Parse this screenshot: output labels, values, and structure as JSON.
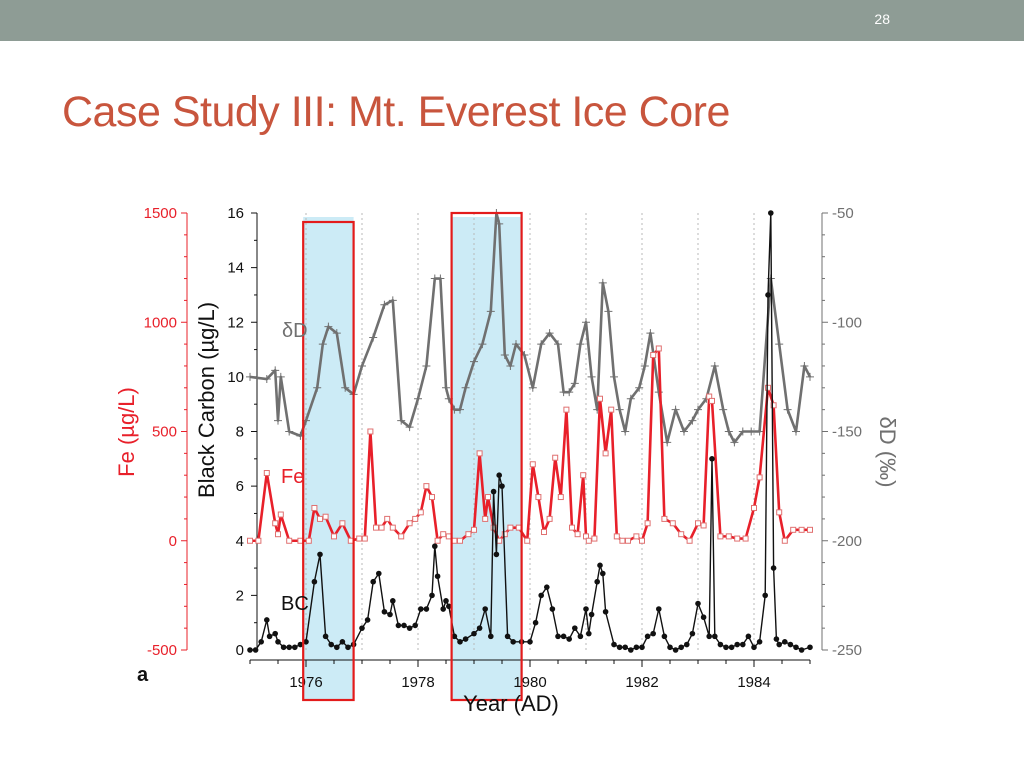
{
  "slide": {
    "number": "28",
    "title": "Case Study III: Mt. Everest Ice Core"
  },
  "colors": {
    "topbar": "#8e9c95",
    "title": "#c8553d",
    "fe": "#e8202a",
    "dd": "#707070",
    "bc": "#111111",
    "highlight_fill": "#bfe6f4",
    "highlight_border": "#e31b1b"
  },
  "chart_data": {
    "type": "line",
    "panel_label": "a",
    "xlabel": "Year (AD)",
    "xlim": [
      1975.0,
      1985.0
    ],
    "xticks": [
      1976,
      1978,
      1980,
      1982,
      1984
    ],
    "grid": "dotted vertical lines at year boundaries",
    "axes": {
      "fe": {
        "label": "Fe (µg/L)",
        "ticks": [
          -500,
          0,
          500,
          1000,
          1500
        ],
        "lim": [
          -500,
          1500
        ]
      },
      "bc": {
        "label": "Black Carbon (µg/L)",
        "ticks": [
          0,
          2,
          4,
          6,
          8,
          10,
          12,
          14,
          16
        ],
        "lim": [
          0,
          16
        ]
      },
      "dd": {
        "label": "δD (‰)",
        "ticks": [
          -50,
          -100,
          -150,
          -200,
          -250
        ],
        "lim": [
          -250,
          -50
        ]
      }
    },
    "highlights": [
      {
        "x_start": 1975.95,
        "x_end": 1976.85
      },
      {
        "x_start": 1978.6,
        "x_end": 1979.85
      }
    ],
    "series": [
      {
        "name": "δD",
        "axis": "dd",
        "marker": "plus",
        "x": [
          1975.0,
          1975.3,
          1975.45,
          1975.5,
          1975.55,
          1975.7,
          1975.9,
          1976.0,
          1976.2,
          1976.3,
          1976.4,
          1976.55,
          1976.7,
          1976.85,
          1977.0,
          1977.2,
          1977.4,
          1977.55,
          1977.7,
          1977.85,
          1978.0,
          1978.15,
          1978.3,
          1978.4,
          1978.5,
          1978.55,
          1978.65,
          1978.75,
          1978.85,
          1979.0,
          1979.15,
          1979.3,
          1979.4,
          1979.45,
          1979.55,
          1979.65,
          1979.75,
          1979.9,
          1980.05,
          1980.2,
          1980.35,
          1980.5,
          1980.6,
          1980.7,
          1980.8,
          1980.9,
          1981.0,
          1981.1,
          1981.2,
          1981.3,
          1981.4,
          1981.5,
          1981.6,
          1981.7,
          1981.8,
          1981.95,
          1982.05,
          1982.15,
          1982.3,
          1982.45,
          1982.6,
          1982.75,
          1982.9,
          1983.0,
          1983.15,
          1983.3,
          1983.45,
          1983.55,
          1983.65,
          1983.8,
          1983.95,
          1984.1,
          1984.3,
          1984.45,
          1984.6,
          1984.75,
          1984.9,
          1985.0
        ],
        "y": [
          -125,
          -126,
          -122,
          -145,
          -125,
          -150,
          -152,
          -145,
          -130,
          -110,
          -102,
          -105,
          -130,
          -133,
          -120,
          -107,
          -92,
          -90,
          -145,
          -148,
          -135,
          -120,
          -80,
          -80,
          -130,
          -135,
          -140,
          -140,
          -130,
          -118,
          -110,
          -95,
          -50,
          -55,
          -115,
          -120,
          -110,
          -115,
          -130,
          -110,
          -105,
          -110,
          -132,
          -132,
          -128,
          -110,
          -100,
          -125,
          -140,
          -82,
          -95,
          -125,
          -140,
          -150,
          -135,
          -130,
          -120,
          -105,
          -132,
          -155,
          -140,
          -150,
          -145,
          -140,
          -135,
          -120,
          -140,
          -150,
          -155,
          -150,
          -150,
          -150,
          -80,
          -110,
          -140,
          -150,
          -120,
          -125
        ]
      },
      {
        "name": "Fe",
        "axis": "fe",
        "marker": "square",
        "x": [
          1975.0,
          1975.15,
          1975.3,
          1975.45,
          1975.5,
          1975.55,
          1975.7,
          1975.9,
          1976.05,
          1976.15,
          1976.25,
          1976.35,
          1976.5,
          1976.65,
          1976.8,
          1976.95,
          1977.05,
          1977.15,
          1977.25,
          1977.35,
          1977.45,
          1977.55,
          1977.7,
          1977.85,
          1977.95,
          1978.05,
          1978.15,
          1978.25,
          1978.35,
          1978.45,
          1978.55,
          1978.65,
          1978.75,
          1978.9,
          1979.0,
          1979.1,
          1979.2,
          1979.25,
          1979.35,
          1979.45,
          1979.55,
          1979.65,
          1979.8,
          1979.95,
          1980.05,
          1980.15,
          1980.25,
          1980.35,
          1980.45,
          1980.55,
          1980.65,
          1980.75,
          1980.85,
          1980.95,
          1981.0,
          1981.05,
          1981.15,
          1981.25,
          1981.35,
          1981.45,
          1981.55,
          1981.65,
          1981.75,
          1981.9,
          1982.0,
          1982.1,
          1982.2,
          1982.3,
          1982.4,
          1982.55,
          1982.7,
          1982.85,
          1983.0,
          1983.1,
          1983.2,
          1983.25,
          1983.4,
          1983.55,
          1983.7,
          1983.85,
          1984.0,
          1984.1,
          1984.25,
          1984.35,
          1984.45,
          1984.55,
          1984.7,
          1984.85,
          1985.0
        ],
        "y": [
          0,
          0,
          310,
          80,
          30,
          120,
          0,
          0,
          0,
          150,
          100,
          110,
          20,
          80,
          0,
          10,
          10,
          500,
          60,
          60,
          100,
          60,
          20,
          80,
          100,
          130,
          250,
          200,
          0,
          30,
          20,
          0,
          0,
          30,
          50,
          400,
          100,
          200,
          60,
          0,
          30,
          60,
          60,
          0,
          350,
          200,
          40,
          100,
          380,
          200,
          600,
          60,
          30,
          300,
          20,
          0,
          10,
          650,
          400,
          600,
          20,
          0,
          0,
          20,
          0,
          80,
          850,
          880,
          100,
          80,
          30,
          0,
          80,
          70,
          660,
          640,
          20,
          20,
          10,
          10,
          150,
          290,
          700,
          620,
          130,
          0,
          50,
          50,
          50
        ]
      },
      {
        "name": "BC",
        "axis": "bc",
        "marker": "dot",
        "x": [
          1975.0,
          1975.1,
          1975.2,
          1975.3,
          1975.35,
          1975.45,
          1975.5,
          1975.6,
          1975.7,
          1975.8,
          1975.9,
          1976.0,
          1976.15,
          1976.25,
          1976.35,
          1976.45,
          1976.55,
          1976.65,
          1976.75,
          1976.85,
          1977.0,
          1977.1,
          1977.2,
          1977.3,
          1977.4,
          1977.5,
          1977.55,
          1977.65,
          1977.75,
          1977.85,
          1977.95,
          1978.05,
          1978.15,
          1978.25,
          1978.3,
          1978.35,
          1978.45,
          1978.5,
          1978.55,
          1978.65,
          1978.75,
          1978.85,
          1979.0,
          1979.1,
          1979.2,
          1979.3,
          1979.35,
          1979.4,
          1979.45,
          1979.5,
          1979.6,
          1979.7,
          1979.85,
          1980.0,
          1980.1,
          1980.2,
          1980.3,
          1980.4,
          1980.5,
          1980.6,
          1980.7,
          1980.8,
          1980.9,
          1981.0,
          1981.05,
          1981.1,
          1981.2,
          1981.25,
          1981.3,
          1981.35,
          1981.5,
          1981.6,
          1981.7,
          1981.8,
          1981.9,
          1982.0,
          1982.1,
          1982.2,
          1982.3,
          1982.4,
          1982.5,
          1982.6,
          1982.7,
          1982.8,
          1982.9,
          1983.0,
          1983.1,
          1983.2,
          1983.25,
          1983.3,
          1983.4,
          1983.5,
          1983.6,
          1983.7,
          1983.8,
          1983.9,
          1984.0,
          1984.1,
          1984.2,
          1984.25,
          1984.3,
          1984.35,
          1984.4,
          1984.45,
          1984.55,
          1984.65,
          1984.75,
          1984.85,
          1985.0
        ],
        "y": [
          0,
          0,
          0.3,
          1.1,
          0.5,
          0.6,
          0.3,
          0.1,
          0.1,
          0.1,
          0.2,
          0.3,
          2.5,
          3.5,
          0.5,
          0.2,
          0.1,
          0.3,
          0.1,
          0.2,
          0.8,
          1.1,
          2.5,
          2.8,
          1.4,
          1.3,
          1.8,
          0.9,
          0.9,
          0.8,
          0.9,
          1.5,
          1.5,
          2.0,
          3.8,
          2.7,
          1.5,
          1.8,
          1.6,
          0.5,
          0.3,
          0.4,
          0.6,
          0.8,
          1.5,
          0.5,
          5.8,
          3.5,
          6.4,
          6.0,
          0.5,
          0.3,
          0.3,
          0.3,
          1.0,
          2.0,
          2.3,
          1.5,
          0.5,
          0.5,
          0.4,
          0.8,
          0.5,
          1.5,
          0.6,
          1.3,
          2.5,
          3.1,
          2.8,
          1.4,
          0.2,
          0.1,
          0.1,
          0.0,
          0.1,
          0.1,
          0.5,
          0.6,
          1.5,
          0.5,
          0.1,
          0.0,
          0.1,
          0.2,
          0.6,
          1.7,
          1.2,
          0.5,
          7.0,
          0.5,
          0.2,
          0.1,
          0.1,
          0.2,
          0.2,
          0.5,
          0.1,
          0.3,
          2.0,
          13.0,
          16.0,
          3.0,
          0.4,
          0.2,
          0.3,
          0.2,
          0.1,
          0.0,
          0.1
        ]
      }
    ],
    "series_labels": {
      "dd": "δD",
      "fe": "Fe",
      "bc": "BC"
    }
  }
}
